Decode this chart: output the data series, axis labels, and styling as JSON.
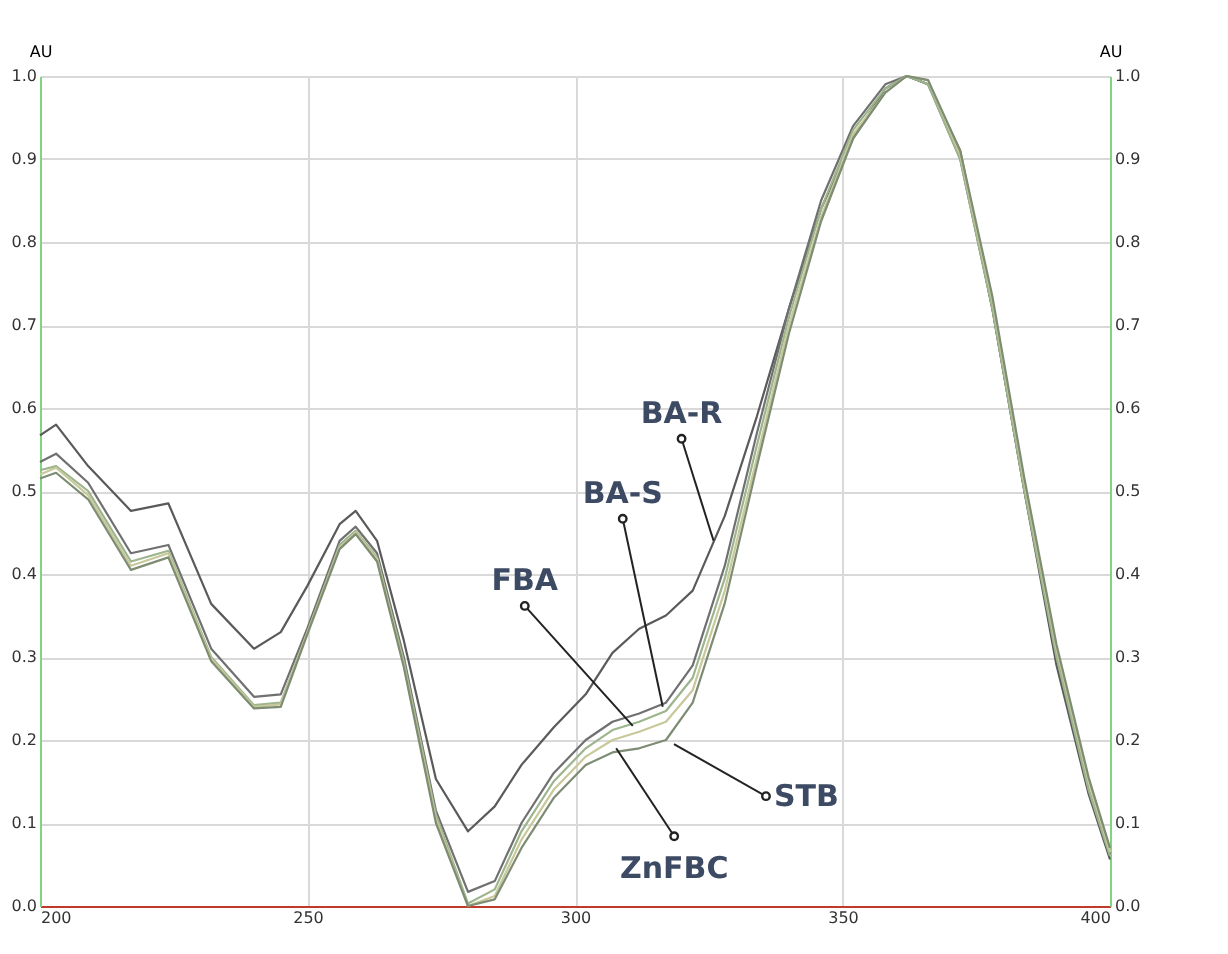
{
  "chart_data": {
    "type": "line",
    "ylabel": "AU",
    "y2label": "AU",
    "x": [
      200,
      203,
      209,
      217,
      224,
      232,
      240,
      245,
      250,
      256,
      259,
      263,
      268,
      274,
      280,
      285,
      290,
      296,
      302,
      307,
      312,
      317,
      322,
      328,
      334,
      340,
      346,
      352,
      358,
      362,
      366,
      372,
      378,
      384,
      390,
      396,
      400
    ],
    "series": [
      {
        "color": "#5a5a5a",
        "values": [
          0.567,
          0.58,
          0.53,
          0.476,
          0.485,
          0.364,
          0.31,
          0.33,
          0.386,
          0.46,
          0.476,
          0.44,
          0.32,
          0.153,
          0.09,
          0.12,
          0.17,
          0.215,
          0.255,
          0.305,
          0.334,
          0.35,
          0.38,
          0.47,
          0.59,
          0.72,
          0.84,
          0.925,
          0.985,
          1.0,
          0.99,
          0.91,
          0.72,
          0.5,
          0.29,
          0.135,
          0.056
        ]
      },
      {
        "color": "#707070",
        "values": [
          0.535,
          0.545,
          0.51,
          0.425,
          0.435,
          0.31,
          0.252,
          0.255,
          0.335,
          0.44,
          0.457,
          0.425,
          0.3,
          0.115,
          0.017,
          0.03,
          0.1,
          0.16,
          0.2,
          0.222,
          0.232,
          0.245,
          0.29,
          0.41,
          0.57,
          0.72,
          0.85,
          0.94,
          0.99,
          1.0,
          0.99,
          0.9,
          0.72,
          0.5,
          0.3,
          0.14,
          0.062
        ]
      },
      {
        "color": "#9cb58c",
        "values": [
          0.525,
          0.53,
          0.5,
          0.415,
          0.428,
          0.3,
          0.242,
          0.245,
          0.33,
          0.435,
          0.452,
          0.42,
          0.295,
          0.11,
          0.003,
          0.02,
          0.09,
          0.15,
          0.19,
          0.212,
          0.222,
          0.235,
          0.275,
          0.395,
          0.555,
          0.71,
          0.84,
          0.935,
          0.985,
          1.0,
          0.99,
          0.9,
          0.72,
          0.5,
          0.3,
          0.14,
          0.06
        ]
      },
      {
        "color": "#c8c89a",
        "values": [
          0.52,
          0.528,
          0.495,
          0.41,
          0.425,
          0.298,
          0.24,
          0.243,
          0.33,
          0.432,
          0.45,
          0.418,
          0.29,
          0.105,
          0.0,
          0.012,
          0.08,
          0.14,
          0.18,
          0.2,
          0.21,
          0.222,
          0.26,
          0.38,
          0.54,
          0.7,
          0.83,
          0.93,
          0.98,
          1.0,
          0.995,
          0.905,
          0.73,
          0.51,
          0.31,
          0.15,
          0.065
        ]
      },
      {
        "color": "#7d8c73",
        "values": [
          0.515,
          0.522,
          0.49,
          0.405,
          0.42,
          0.295,
          0.238,
          0.24,
          0.328,
          0.43,
          0.448,
          0.415,
          0.288,
          0.1,
          0.0,
          0.008,
          0.07,
          0.13,
          0.17,
          0.185,
          0.19,
          0.2,
          0.245,
          0.365,
          0.53,
          0.69,
          0.825,
          0.925,
          0.98,
          1.0,
          0.995,
          0.91,
          0.735,
          0.515,
          0.315,
          0.155,
          0.07
        ]
      }
    ],
    "xlim": [
      200,
      400
    ],
    "xticks": [
      200,
      250,
      300,
      350,
      400
    ],
    "ylim": [
      0,
      1
    ],
    "yticks": [
      {
        "value": 0,
        "label": "0.0"
      },
      0.1,
      0.2,
      0.3,
      0.4,
      0.5,
      0.6,
      0.7,
      0.8,
      0.9,
      {
        "value": 1,
        "label": "1.0"
      }
    ],
    "y2lim": [
      0,
      1
    ],
    "y2ticks": [
      {
        "value": 0,
        "label": "0.0"
      },
      0.1,
      0.2,
      0.3,
      0.4,
      0.5,
      0.6,
      0.7,
      0.8,
      0.9,
      {
        "value": 1,
        "label": "1.0"
      }
    ],
    "annotations": [
      {
        "text": "BA-R",
        "x": 325.9,
        "y": 0.44
      },
      {
        "text": "BA-S",
        "x": 316.4,
        "y": 0.24
      },
      {
        "text": "FBA",
        "x": 310.8,
        "y": 0.217
      },
      {
        "text": "ZnFBC",
        "x": 307.7,
        "y": 0.19
      },
      {
        "text": "STB",
        "x": 318.5,
        "y": 0.195
      }
    ],
    "grid": true,
    "legend": false,
    "marker": "none",
    "line_style": "solid"
  }
}
